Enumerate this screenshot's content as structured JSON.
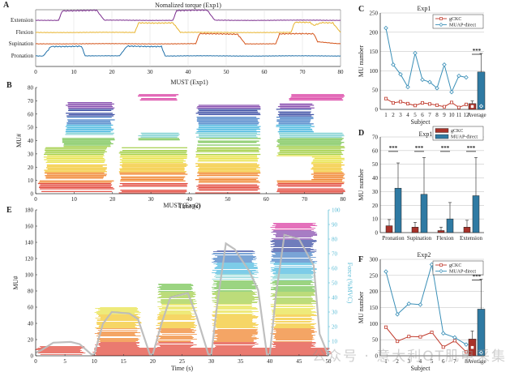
{
  "watermark": "公众号 · 意大利OT肌电采集",
  "chart_data": [
    {
      "panel": "A",
      "type": "line",
      "title": "Nomalized torque (Exp1)",
      "xlabel": "",
      "ylabel": "",
      "xlim": [
        0,
        80
      ],
      "xticks": [
        0,
        10,
        20,
        30,
        40,
        50,
        60,
        70,
        80
      ],
      "grid": "x",
      "series": [
        {
          "name": "Extension",
          "color": "#7b2d8e",
          "segments": [
            [
              0,
              0
            ],
            [
              6,
              0
            ],
            [
              7,
              1
            ],
            [
              16,
              1
            ],
            [
              18,
              0
            ],
            [
              36,
              0
            ],
            [
              37,
              1
            ],
            [
              45,
              1
            ],
            [
              47,
              0
            ],
            [
              80,
              0
            ]
          ]
        },
        {
          "name": "Flexion",
          "color": "#e8b32b",
          "segments": [
            [
              0,
              0
            ],
            [
              26,
              0
            ],
            [
              27,
              1
            ],
            [
              36,
              1
            ],
            [
              38,
              0
            ],
            [
              67,
              0
            ],
            [
              68,
              1
            ],
            [
              72,
              1
            ],
            [
              73,
              0.7
            ],
            [
              75,
              1
            ],
            [
              78,
              1
            ],
            [
              80,
              0
            ]
          ]
        },
        {
          "name": "Supination",
          "color": "#d45318",
          "segments": [
            [
              0,
              0
            ],
            [
              42,
              0
            ],
            [
              43,
              1
            ],
            [
              53,
              1
            ],
            [
              55,
              0
            ],
            [
              63,
              0
            ],
            [
              64,
              1
            ],
            [
              73,
              1
            ],
            [
              74,
              0.2
            ],
            [
              80,
              0
            ]
          ]
        },
        {
          "name": "Pronation",
          "color": "#1f6fa8",
          "segments": [
            [
              0,
              0
            ],
            [
              2,
              0
            ],
            [
              4,
              1
            ],
            [
              12,
              1
            ],
            [
              13,
              0
            ],
            [
              22,
              0
            ],
            [
              24,
              1
            ],
            [
              33,
              1
            ],
            [
              34,
              0
            ],
            [
              80,
              0
            ]
          ]
        }
      ]
    },
    {
      "panel": "B",
      "type": "scatter",
      "title": "MUST (Exp1)",
      "xlabel": "Time (s)",
      "ylabel": "MU#",
      "xlim": [
        0,
        80
      ],
      "ylim": [
        0,
        80
      ],
      "xticks": [
        0,
        10,
        20,
        30,
        40,
        50,
        60,
        70,
        80
      ],
      "yticks": [
        0,
        10,
        20,
        30,
        40,
        50,
        60,
        70,
        80
      ],
      "blocks": [
        {
          "t0": 1,
          "t1": 20,
          "mu0": 0,
          "mu1": 10
        },
        {
          "t0": 2.5,
          "t1": 18,
          "mu0": 10,
          "mu1": 35
        },
        {
          "t0": 7,
          "t1": 20,
          "mu0": 35,
          "mu1": 42
        },
        {
          "t0": 8,
          "t1": 20,
          "mu0": 42,
          "mu1": 69
        },
        {
          "t0": 22,
          "t1": 39,
          "mu0": 0,
          "mu1": 35
        },
        {
          "t0": 27,
          "t1": 37,
          "mu0": 70,
          "mu1": 75
        },
        {
          "t0": 27,
          "t1": 37,
          "mu0": 40,
          "mu1": 46
        },
        {
          "t0": 42,
          "t1": 58,
          "mu0": 0,
          "mu1": 35
        },
        {
          "t0": 42,
          "t1": 58,
          "mu0": 35,
          "mu1": 68
        },
        {
          "t0": 63,
          "t1": 80,
          "mu0": 0,
          "mu1": 10
        },
        {
          "t0": 72,
          "t1": 80,
          "mu0": 10,
          "mu1": 28
        },
        {
          "t0": 63,
          "t1": 80,
          "mu0": 28,
          "mu1": 46
        },
        {
          "t0": 63,
          "t1": 72,
          "mu0": 46,
          "mu1": 68
        },
        {
          "t0": 66,
          "t1": 80,
          "mu0": 70,
          "mu1": 75
        }
      ]
    },
    {
      "panel": "C",
      "type": "line",
      "title": "Exp1",
      "xlabel": "Subject",
      "ylabel": "MU number",
      "ylim": [
        0,
        250
      ],
      "yticks": [
        0,
        50,
        100,
        150,
        200,
        250
      ],
      "categories": [
        "1",
        "2",
        "3",
        "4",
        "5",
        "6",
        "7",
        "8",
        "9",
        "10",
        "11",
        "12"
      ],
      "legend": {
        "placement": "top-right",
        "entries": [
          "gCKC",
          "MUAP-direct"
        ]
      },
      "series": [
        {
          "name": "gCKC",
          "color": "#c0392b",
          "values": [
            28,
            17,
            20,
            15,
            10,
            17,
            14,
            11,
            7,
            18,
            5,
            13
          ]
        },
        {
          "name": "MUAP-direct",
          "color": "#3a8fb7",
          "values": [
            211,
            116,
            91,
            58,
            146,
            77,
            71,
            55,
            116,
            45,
            87,
            83
          ]
        }
      ],
      "average": {
        "label": "Average",
        "gCKC": {
          "mean": 15,
          "err": 7
        },
        "MUAP-direct": {
          "mean": 97,
          "err": 48
        },
        "significance": "***"
      }
    },
    {
      "panel": "D",
      "type": "bar",
      "title": "Exp1",
      "xlabel": "",
      "ylabel": "MU number",
      "ylim": [
        0,
        70
      ],
      "yticks": [
        0,
        10,
        20,
        30,
        40,
        50,
        60,
        70
      ],
      "categories": [
        "Pronation",
        "Supination",
        "Flexion",
        "Extension"
      ],
      "legend": {
        "placement": "top-right",
        "entries": [
          "gCKC",
          "MUAP-direct"
        ]
      },
      "series": [
        {
          "name": "gCKC",
          "color": "#a8322a",
          "values": [
            5,
            4,
            1.5,
            4
          ],
          "errors": [
            4.5,
            3.5,
            2.5,
            5
          ]
        },
        {
          "name": "MUAP-direct",
          "color": "#2f7aa3",
          "values": [
            32.5,
            28,
            10,
            27
          ],
          "errors": [
            18.5,
            27,
            12,
            28
          ]
        }
      ],
      "significance": [
        "***",
        "***",
        "***",
        "***"
      ]
    },
    {
      "panel": "E",
      "type": "scatter",
      "title": "MUST (Exp2)",
      "xlabel": "Time (s)",
      "ylabel": "MU#",
      "y2label": "Force (%MVC)",
      "xlim": [
        0,
        50
      ],
      "ylim": [
        0,
        180
      ],
      "y2lim": [
        0,
        100
      ],
      "xticks": [
        0,
        5,
        10,
        15,
        20,
        25,
        30,
        35,
        40,
        45,
        50
      ],
      "yticks": [
        0,
        20,
        40,
        60,
        80,
        100,
        120,
        140,
        160,
        180
      ],
      "y2ticks": [
        10,
        20,
        30,
        40,
        50,
        60,
        70,
        80,
        90,
        100
      ],
      "blocks": [
        {
          "t0": 0.3,
          "t1": 8,
          "mu0": 0,
          "mu1": 12
        },
        {
          "t0": 10,
          "t1": 50,
          "mu0": 0,
          "mu1": 10
        },
        {
          "t0": 10.5,
          "t1": 17.5,
          "mu0": 10,
          "mu1": 60
        },
        {
          "t0": 21,
          "t1": 27,
          "mu0": 10,
          "mu1": 90
        },
        {
          "t0": 30.5,
          "t1": 37.5,
          "mu0": 10,
          "mu1": 130
        },
        {
          "t0": 40.5,
          "t1": 47.5,
          "mu0": 10,
          "mu1": 165
        }
      ],
      "force": [
        [
          0,
          2
        ],
        [
          1,
          4
        ],
        [
          3,
          9
        ],
        [
          6,
          9.5
        ],
        [
          7.5,
          8
        ],
        [
          9.5,
          1
        ],
        [
          10,
          1
        ],
        [
          11.5,
          22
        ],
        [
          13,
          30
        ],
        [
          16,
          29
        ],
        [
          17.5,
          25
        ],
        [
          19.5,
          1
        ],
        [
          20,
          1
        ],
        [
          21.5,
          22
        ],
        [
          23,
          40
        ],
        [
          26,
          43
        ],
        [
          27.5,
          27
        ],
        [
          29.5,
          1
        ],
        [
          30,
          1
        ],
        [
          31,
          35
        ],
        [
          32.5,
          77
        ],
        [
          34,
          73
        ],
        [
          36.5,
          58
        ],
        [
          38,
          45
        ],
        [
          39.5,
          1
        ],
        [
          40,
          1
        ],
        [
          41,
          40
        ],
        [
          42.5,
          83
        ],
        [
          45,
          80
        ],
        [
          47.5,
          62
        ],
        [
          48.5,
          15
        ],
        [
          50,
          0
        ]
      ]
    },
    {
      "panel": "F",
      "type": "line",
      "title": "Exp2",
      "xlabel": "Subject",
      "ylabel": "MU number",
      "ylim": [
        0,
        300
      ],
      "yticks": [
        0,
        50,
        100,
        150,
        200,
        250,
        300
      ],
      "categories": [
        "1",
        "2",
        "3",
        "4",
        "5",
        "6",
        "7",
        "8"
      ],
      "legend": {
        "placement": "top-right",
        "entries": [
          "gCKC",
          "MUAP-direct"
        ]
      },
      "series": [
        {
          "name": "gCKC",
          "color": "#c0392b",
          "values": [
            89,
            45,
            60,
            59,
            73,
            27,
            47,
            12
          ]
        },
        {
          "name": "MUAP-direct",
          "color": "#3a8fb7",
          "values": [
            262,
            129,
            162,
            159,
            284,
            70,
            57,
            35
          ]
        }
      ],
      "average": {
        "label": "Average",
        "gCKC": {
          "mean": 52,
          "err": 25
        },
        "MUAP-direct": {
          "mean": 145,
          "err": 93
        },
        "significance": "***"
      }
    }
  ]
}
